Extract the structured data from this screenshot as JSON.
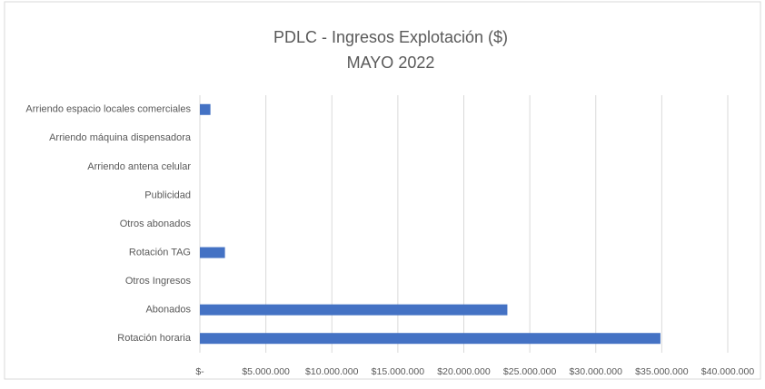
{
  "chart_data": {
    "type": "hbar",
    "title": "PDLC - Ingresos Explotación ($)",
    "subtitle": "MAYO 2022",
    "categories": [
      "Arriendo espacio locales comerciales",
      "Arriendo máquina dispensadora",
      "Arriendo antena celular",
      "Publicidad",
      "Otros abonados",
      "Rotación TAG",
      "Otros Ingresos",
      "Abonados",
      "Rotación horaria"
    ],
    "values": [
      800000,
      0,
      0,
      0,
      0,
      1900000,
      0,
      23300000,
      34900000
    ],
    "color": "#4472c4",
    "xlim": [
      0,
      40000000
    ],
    "xticks": [
      {
        "value": 0,
        "label": "$-"
      },
      {
        "value": 5000000,
        "label": "$5.000.000"
      },
      {
        "value": 10000000,
        "label": "$10.000.000"
      },
      {
        "value": 15000000,
        "label": "$15.000.000"
      },
      {
        "value": 20000000,
        "label": "$20.000.000"
      },
      {
        "value": 25000000,
        "label": "$25.000.000"
      },
      {
        "value": 30000000,
        "label": "$30.000.000"
      },
      {
        "value": 35000000,
        "label": "$35.000.000"
      },
      {
        "value": 40000000,
        "label": "$40.000.000"
      }
    ],
    "grid": true
  }
}
